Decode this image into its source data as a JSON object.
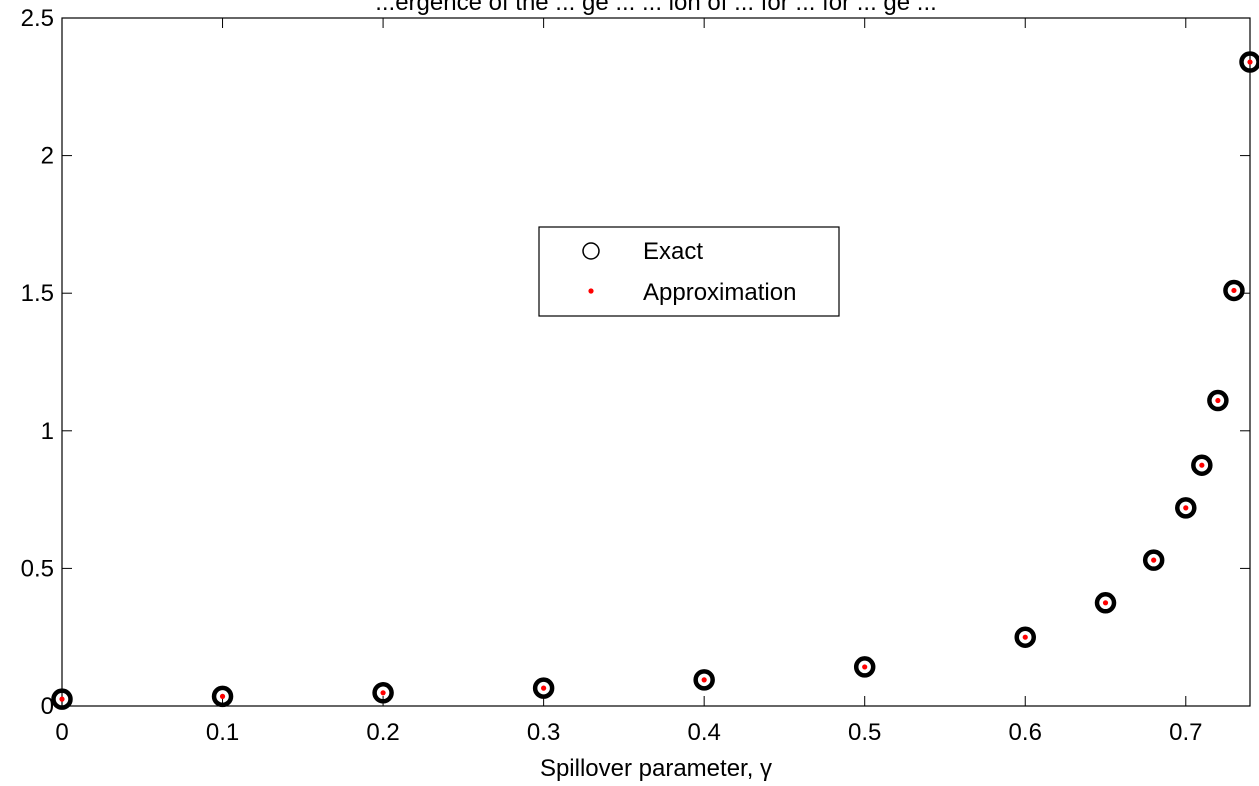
{
  "chart_data": {
    "type": "scatter",
    "title": "...ergence of the ... ge ... ... ion of ... for ... for ... ge ... ",
    "xlabel": "Spillover parameter, γ",
    "ylabel": "",
    "xlim": [
      0,
      0.74
    ],
    "ylim": [
      0,
      2.5
    ],
    "x_ticks": [
      "0",
      "0.1",
      "0.2",
      "0.3",
      "0.4",
      "0.5",
      "0.6",
      "0.7"
    ],
    "y_ticks": [
      "0",
      "0.5",
      "1",
      "1.5",
      "2",
      "2.5"
    ],
    "grid": false,
    "legend_position": "center",
    "series": [
      {
        "name": "Exact",
        "marker": "circle",
        "color": "#000000",
        "x": [
          0,
          0.1,
          0.2,
          0.3,
          0.4,
          0.5,
          0.6,
          0.65,
          0.68,
          0.7,
          0.71,
          0.72,
          0.73,
          0.74
        ],
        "y": [
          0.025,
          0.035,
          0.048,
          0.065,
          0.095,
          0.142,
          0.25,
          0.375,
          0.53,
          0.72,
          0.875,
          1.11,
          1.51,
          2.34
        ]
      },
      {
        "name": "Approximation",
        "marker": "dot",
        "color": "#ff0000",
        "x": [
          0,
          0.1,
          0.2,
          0.3,
          0.4,
          0.5,
          0.6,
          0.65,
          0.68,
          0.7,
          0.71,
          0.72,
          0.73,
          0.74
        ],
        "y": [
          0.025,
          0.035,
          0.048,
          0.065,
          0.095,
          0.142,
          0.25,
          0.375,
          0.53,
          0.72,
          0.875,
          1.11,
          1.51,
          2.34
        ]
      }
    ]
  }
}
